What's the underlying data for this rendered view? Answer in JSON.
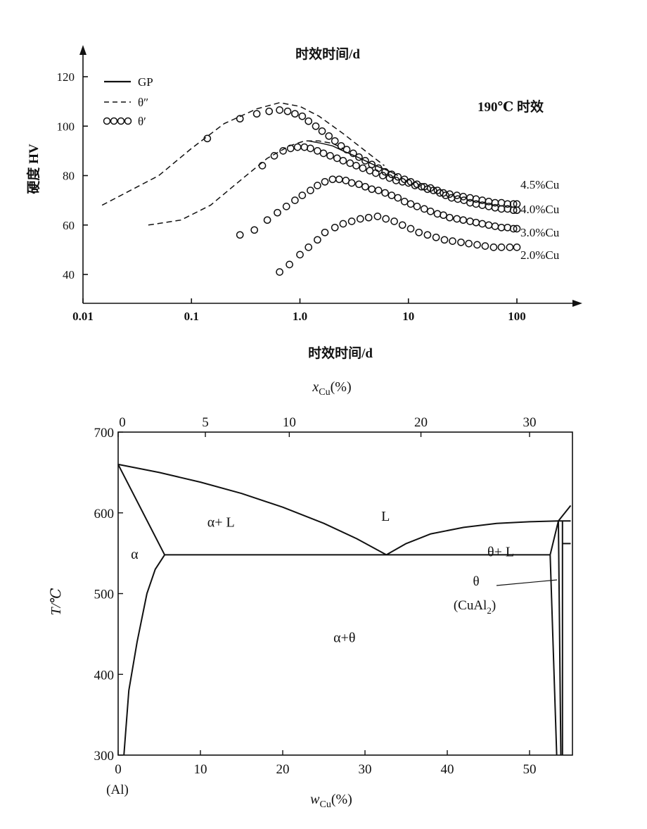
{
  "chart_data": [
    {
      "type": "line",
      "title": "时效时间/d",
      "annotation": "190℃ 时效",
      "xlabel": "时效时间/d",
      "ylabel": "硬度 HV",
      "xscale": "log",
      "xlim": [
        0.01,
        100
      ],
      "ylim": [
        35,
        125
      ],
      "xticks": [
        0.01,
        0.1,
        1.0,
        10,
        100
      ],
      "xtick_labels": [
        "0.01",
        "0.1",
        "1.0",
        "10",
        "100"
      ],
      "yticks": [
        40,
        60,
        80,
        100,
        120
      ],
      "legend": {
        "placement": "top-left",
        "entries": [
          {
            "label": "GP",
            "style": "solid"
          },
          {
            "label": "θ″",
            "style": "dashed"
          },
          {
            "label": "θ′",
            "style": "circles"
          }
        ]
      },
      "series": [
        {
          "name": "4.5%Cu",
          "dashed": {
            "x": [
              0.015,
              0.05,
              0.1,
              0.2,
              0.4,
              0.65,
              1.0,
              1.5,
              2.5,
              4,
              6
            ],
            "y": [
              68,
              80,
              91,
              101,
              107,
              109.5,
              108,
              104,
              97,
              90,
              84
            ]
          },
          "circles": {
            "x": [
              0.14,
              0.28,
              0.4,
              0.52,
              0.65,
              0.77,
              0.9,
              1.05,
              1.2,
              1.4,
              1.6,
              1.85,
              2.1,
              2.4,
              2.7,
              3.1,
              3.5,
              4,
              4.6,
              5.3,
              6.1,
              7,
              8,
              9.2,
              10.5,
              12,
              14,
              16,
              18.5,
              21,
              24,
              28,
              32,
              37,
              42,
              48,
              55,
              63,
              72,
              82,
              93,
              100
            ],
            "y": [
              95,
              103,
              105,
              106,
              106.5,
              106,
              105,
              104,
              102,
              100,
              98,
              96,
              94,
              92,
              90.5,
              89,
              87.5,
              86,
              84.5,
              83,
              81.5,
              80.5,
              79.5,
              78.5,
              77.5,
              76.5,
              75.5,
              75,
              74,
              73,
              72.5,
              72,
              71.5,
              71,
              70.5,
              70,
              69.5,
              69,
              69,
              68.5,
              68.5,
              68.5
            ]
          }
        },
        {
          "name": "4.0%Cu",
          "dashed": {
            "x": [
              0.04,
              0.08,
              0.15,
              0.3,
              0.5,
              0.8,
              1.1,
              1.5,
              2,
              2.5
            ],
            "y": [
              60,
              62,
              68,
              79,
              87,
              92,
              94,
              94,
              93,
              91
            ]
          },
          "solid": {
            "x": [
              1.2,
              1.6,
              2,
              2.5,
              3.2,
              4,
              5,
              6.5,
              8
            ],
            "y": [
              94,
              93,
              92,
              90,
              88,
              86,
              84,
              82,
              80
            ]
          },
          "circles": {
            "x": [
              0.45,
              0.58,
              0.7,
              0.82,
              0.95,
              1.1,
              1.25,
              1.45,
              1.65,
              1.9,
              2.2,
              2.5,
              2.9,
              3.3,
              3.8,
              4.4,
              5,
              5.8,
              6.7,
              7.7,
              8.8,
              10,
              11.5,
              13.2,
              15,
              17,
              19.5,
              22,
              25,
              28.5,
              32.5,
              37,
              42,
              48,
              55,
              63,
              72,
              82,
              93,
              100
            ],
            "y": [
              84,
              88,
              90,
              91,
              91.5,
              91.5,
              91,
              90,
              89,
              88,
              87,
              86,
              85,
              84,
              83,
              82,
              81,
              80,
              79,
              78,
              77.5,
              77,
              76,
              75.5,
              74.5,
              74,
              73,
              72,
              71,
              70.5,
              70,
              69,
              68.5,
              68,
              67.5,
              67,
              66.5,
              66.5,
              66,
              66
            ]
          }
        },
        {
          "name": "3.0%Cu",
          "circles": {
            "x": [
              0.28,
              0.38,
              0.5,
              0.62,
              0.75,
              0.9,
              1.05,
              1.25,
              1.45,
              1.7,
              2,
              2.3,
              2.65,
              3,
              3.5,
              4,
              4.6,
              5.3,
              6.1,
              7,
              8,
              9.2,
              10.5,
              12,
              14,
              16,
              18.5,
              21,
              24,
              28,
              32,
              37,
              42,
              48,
              55,
              63,
              72,
              82,
              93,
              100
            ],
            "y": [
              56,
              58,
              62,
              65,
              67.5,
              70,
              72,
              74,
              76,
              77.5,
              78.5,
              78.5,
              78,
              77,
              76.5,
              75.5,
              74.5,
              74,
              73,
              72,
              71,
              69.5,
              68.5,
              67.5,
              66.5,
              65.5,
              64.5,
              64,
              63,
              62.5,
              62,
              61.5,
              61,
              60.5,
              60,
              59.5,
              59,
              59,
              58.5,
              58.5
            ]
          }
        },
        {
          "name": "2.0%Cu",
          "circles": {
            "x": [
              0.65,
              0.8,
              1.0,
              1.2,
              1.45,
              1.7,
              2.1,
              2.5,
              3,
              3.6,
              4.3,
              5.2,
              6.2,
              7.4,
              8.8,
              10.5,
              12.5,
              15,
              18,
              21.5,
              25.5,
              30.5,
              36,
              43,
              51,
              61,
              72,
              86,
              100
            ],
            "y": [
              41,
              44,
              48,
              51,
              54,
              57,
              59,
              60.5,
              61.5,
              62.5,
              63,
              63.5,
              62.5,
              61.5,
              60,
              58.5,
              57,
              56,
              55,
              54,
              53.5,
              53,
              52.5,
              52,
              51.5,
              51,
              51,
              51,
              51
            ]
          }
        }
      ]
    },
    {
      "type": "line",
      "chart_kind": "phase-diagram",
      "xlabel": "w_Cu(%)",
      "xlabel_top": "x_Cu(%)",
      "ylabel": "T/℃",
      "xlim": [
        0,
        55
      ],
      "ylim": [
        300,
        700
      ],
      "xticks": [
        0,
        10,
        20,
        30,
        40,
        50
      ],
      "xtick_labels": [
        "0",
        "10",
        "20",
        "30",
        "40",
        "50"
      ],
      "xticks_top": [
        0,
        5,
        10,
        20,
        30
      ],
      "xticks_top_at_w": [
        0,
        10.6,
        20.8,
        36.8,
        50
      ],
      "yticks": [
        300,
        400,
        500,
        600,
        700
      ],
      "origin_label": "(Al)",
      "regions": [
        {
          "label": "α",
          "x": 2,
          "y": 543
        },
        {
          "label": "α+ L",
          "x": 12.5,
          "y": 583
        },
        {
          "label": "L",
          "x": 32.5,
          "y": 590
        },
        {
          "label": "θ+ L",
          "x": 46.5,
          "y": 546
        },
        {
          "label": "α+θ",
          "x": 27.5,
          "y": 440
        }
      ],
      "phase_label": {
        "name": "θ",
        "formula": "(CuAl",
        "subscript": "2",
        "close": ")"
      },
      "boundaries": [
        {
          "name": "liquidus-al",
          "x": [
            0,
            5,
            10,
            15,
            20,
            25,
            29,
            32.6
          ],
          "y": [
            660,
            650,
            638,
            624,
            607,
            587,
            568,
            548
          ]
        },
        {
          "name": "liquidus-theta",
          "x": [
            32.6,
            35,
            38,
            42,
            46,
            50,
            53.5
          ],
          "y": [
            548,
            562,
            574,
            582,
            587,
            589,
            590
          ]
        },
        {
          "name": "solidus-al",
          "x": [
            0,
            5.65
          ],
          "y": [
            660,
            548
          ]
        },
        {
          "name": "solvus-al",
          "x": [
            0.7,
            1.3,
            2.3,
            3.5,
            4.5,
            5.65
          ],
          "y": [
            300,
            380,
            440,
            500,
            530,
            548
          ]
        },
        {
          "name": "eutectic",
          "x": [
            5.65,
            52.5
          ],
          "y": [
            548,
            548
          ]
        },
        {
          "name": "theta-left",
          "x": [
            52.5,
            53.3
          ],
          "y": [
            548,
            300
          ]
        },
        {
          "name": "theta-peritectic-left",
          "x": [
            52.5,
            53.5
          ],
          "y": [
            548,
            590
          ]
        },
        {
          "name": "theta-right-a",
          "x": [
            53.5,
            53.8
          ],
          "y": [
            590,
            300
          ]
        },
        {
          "name": "theta-right-b",
          "x": [
            54,
            54
          ],
          "y": [
            590,
            300
          ]
        },
        {
          "name": "liquidus-upper",
          "x": [
            53.5,
            55
          ],
          "y": [
            590,
            609
          ]
        },
        {
          "name": "peritectic",
          "x": [
            53.5,
            55
          ],
          "y": [
            590,
            590
          ]
        },
        {
          "name": "phase-step",
          "x": [
            54,
            55
          ],
          "y": [
            562,
            562
          ]
        }
      ]
    }
  ]
}
